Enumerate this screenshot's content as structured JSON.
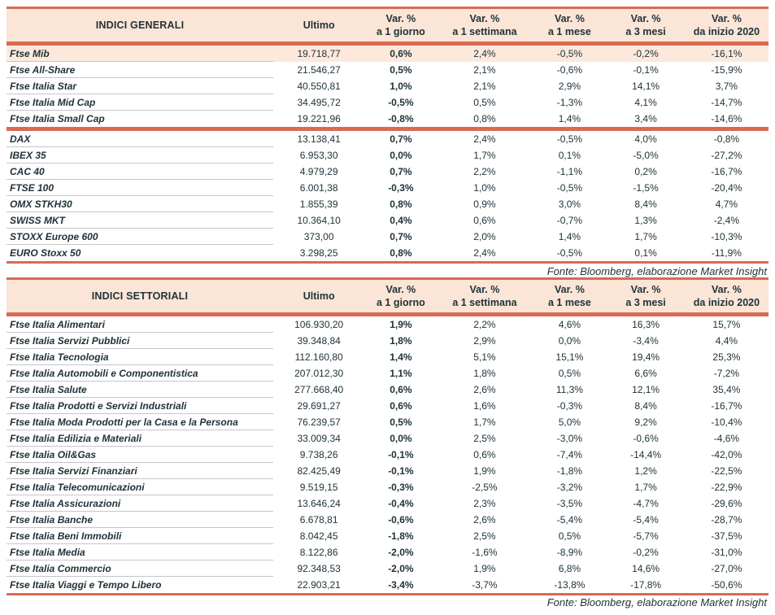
{
  "colors": {
    "accent": "#d96a52",
    "header_bg": "#fbe5d6",
    "highlight_bg": "#fce9dc",
    "text": "#20333a",
    "separator": "#c6c6c6"
  },
  "col_headers": {
    "var": "Var. %",
    "ultimo": "Ultimo",
    "periods": [
      "a 1 giorno",
      "a 1 settimana",
      "a 1 mese",
      "a 3 mesi",
      "da inizio 2020"
    ]
  },
  "fonte": "Fonte: Bloomberg, elaborazione Market Insight",
  "general": {
    "title": "INDICI GENERALI",
    "separator_after": 5,
    "rows": [
      {
        "name": "Ftse Mib",
        "ultimo": "19.718,77",
        "d1": "0,6%",
        "w1": "2,4%",
        "m1": "-0,5%",
        "m3": "-0,2%",
        "ytd": "-16,1%",
        "highlight": true
      },
      {
        "name": "Ftse All-Share",
        "ultimo": "21.546,27",
        "d1": "0,5%",
        "w1": "2,1%",
        "m1": "-0,6%",
        "m3": "-0,1%",
        "ytd": "-15,9%"
      },
      {
        "name": "Ftse Italia Star",
        "ultimo": "40.550,81",
        "d1": "1,0%",
        "w1": "2,1%",
        "m1": "2,9%",
        "m3": "14,1%",
        "ytd": "3,7%"
      },
      {
        "name": "Ftse Italia Mid Cap",
        "ultimo": "34.495,72",
        "d1": "-0,5%",
        "w1": "0,5%",
        "m1": "-1,3%",
        "m3": "4,1%",
        "ytd": "-14,7%"
      },
      {
        "name": "Ftse Italia Small Cap",
        "ultimo": "19.221,96",
        "d1": "-0,8%",
        "w1": "0,8%",
        "m1": "1,4%",
        "m3": "3,4%",
        "ytd": "-14,6%"
      },
      {
        "name": "DAX",
        "ultimo": "13.138,41",
        "d1": "0,7%",
        "w1": "2,4%",
        "m1": "-0,5%",
        "m3": "4,0%",
        "ytd": "-0,8%"
      },
      {
        "name": "IBEX 35",
        "ultimo": "6.953,30",
        "d1": "0,0%",
        "w1": "1,7%",
        "m1": "0,1%",
        "m3": "-5,0%",
        "ytd": "-27,2%"
      },
      {
        "name": "CAC 40",
        "ultimo": "4.979,29",
        "d1": "0,7%",
        "w1": "2,2%",
        "m1": "-1,1%",
        "m3": "0,2%",
        "ytd": "-16,7%"
      },
      {
        "name": "FTSE 100",
        "ultimo": "6.001,38",
        "d1": "-0,3%",
        "w1": "1,0%",
        "m1": "-0,5%",
        "m3": "-1,5%",
        "ytd": "-20,4%"
      },
      {
        "name": "OMX STKH30",
        "ultimo": "1.855,39",
        "d1": "0,8%",
        "w1": "0,9%",
        "m1": "3,0%",
        "m3": "8,4%",
        "ytd": "4,7%"
      },
      {
        "name": "SWISS MKT",
        "ultimo": "10.364,10",
        "d1": "0,4%",
        "w1": "0,6%",
        "m1": "-0,7%",
        "m3": "1,3%",
        "ytd": "-2,4%"
      },
      {
        "name": "STOXX Europe 600",
        "ultimo": "373,00",
        "d1": "0,7%",
        "w1": "2,0%",
        "m1": "1,4%",
        "m3": "1,7%",
        "ytd": "-10,3%"
      },
      {
        "name": "EURO Stoxx 50",
        "ultimo": "3.298,25",
        "d1": "0,8%",
        "w1": "2,4%",
        "m1": "-0,5%",
        "m3": "0,1%",
        "ytd": "-11,9%"
      }
    ]
  },
  "sector": {
    "title": "INDICI SETTORIALI",
    "rows": [
      {
        "name": "Ftse Italia Alimentari",
        "ultimo": "106.930,20",
        "d1": "1,9%",
        "w1": "2,2%",
        "m1": "4,6%",
        "m3": "16,3%",
        "ytd": "15,7%"
      },
      {
        "name": "Ftse Italia Servizi Pubblici",
        "ultimo": "39.348,84",
        "d1": "1,8%",
        "w1": "2,9%",
        "m1": "0,0%",
        "m3": "-3,4%",
        "ytd": "4,4%"
      },
      {
        "name": "Ftse Italia Tecnologia",
        "ultimo": "112.160,80",
        "d1": "1,4%",
        "w1": "5,1%",
        "m1": "15,1%",
        "m3": "19,4%",
        "ytd": "25,3%"
      },
      {
        "name": "Ftse Italia Automobili e Componentistica",
        "ultimo": "207.012,30",
        "d1": "1,1%",
        "w1": "1,8%",
        "m1": "0,5%",
        "m3": "6,6%",
        "ytd": "-7,2%"
      },
      {
        "name": "Ftse Italia Salute",
        "ultimo": "277.668,40",
        "d1": "0,6%",
        "w1": "2,6%",
        "m1": "11,3%",
        "m3": "12,1%",
        "ytd": "35,4%"
      },
      {
        "name": "Ftse Italia Prodotti e Servizi Industriali",
        "ultimo": "29.691,27",
        "d1": "0,6%",
        "w1": "1,6%",
        "m1": "-0,3%",
        "m3": "8,4%",
        "ytd": "-16,7%"
      },
      {
        "name": "Ftse Italia Moda Prodotti per la Casa e la Persona",
        "ultimo": "76.239,57",
        "d1": "0,5%",
        "w1": "1,7%",
        "m1": "5,0%",
        "m3": "9,2%",
        "ytd": "-10,4%"
      },
      {
        "name": "Ftse Italia Edilizia e Materiali",
        "ultimo": "33.009,34",
        "d1": "0,0%",
        "w1": "2,5%",
        "m1": "-3,0%",
        "m3": "-0,6%",
        "ytd": "-4,6%"
      },
      {
        "name": "Ftse Italia Oil&Gas",
        "ultimo": "9.738,26",
        "d1": "-0,1%",
        "w1": "0,6%",
        "m1": "-7,4%",
        "m3": "-14,4%",
        "ytd": "-42,0%"
      },
      {
        "name": "Ftse Italia Servizi Finanziari",
        "ultimo": "82.425,49",
        "d1": "-0,1%",
        "w1": "1,9%",
        "m1": "-1,8%",
        "m3": "1,2%",
        "ytd": "-22,5%"
      },
      {
        "name": "Ftse Italia Telecomunicazioni",
        "ultimo": "9.519,15",
        "d1": "-0,3%",
        "w1": "-2,5%",
        "m1": "-3,2%",
        "m3": "1,7%",
        "ytd": "-22,9%"
      },
      {
        "name": "Ftse Italia Assicurazioni",
        "ultimo": "13.646,24",
        "d1": "-0,4%",
        "w1": "2,3%",
        "m1": "-3,5%",
        "m3": "-4,7%",
        "ytd": "-29,6%"
      },
      {
        "name": "Ftse Italia Banche",
        "ultimo": "6.678,81",
        "d1": "-0,6%",
        "w1": "2,6%",
        "m1": "-5,4%",
        "m3": "-5,4%",
        "ytd": "-28,7%"
      },
      {
        "name": "Ftse Italia Beni Immobili",
        "ultimo": "8.042,45",
        "d1": "-1,8%",
        "w1": "2,5%",
        "m1": "0,5%",
        "m3": "-5,7%",
        "ytd": "-37,5%"
      },
      {
        "name": "Ftse Italia Media",
        "ultimo": "8.122,86",
        "d1": "-2,0%",
        "w1": "-1,6%",
        "m1": "-8,9%",
        "m3": "-0,2%",
        "ytd": "-31,0%"
      },
      {
        "name": "Ftse Italia Commercio",
        "ultimo": "92.348,53",
        "d1": "-2,0%",
        "w1": "1,9%",
        "m1": "6,8%",
        "m3": "14,6%",
        "ytd": "-27,0%"
      },
      {
        "name": "Ftse Italia Viaggi e Tempo Libero",
        "ultimo": "22.903,21",
        "d1": "-3,4%",
        "w1": "-3,7%",
        "m1": "-13,8%",
        "m3": "-17,8%",
        "ytd": "-50,6%"
      }
    ]
  }
}
